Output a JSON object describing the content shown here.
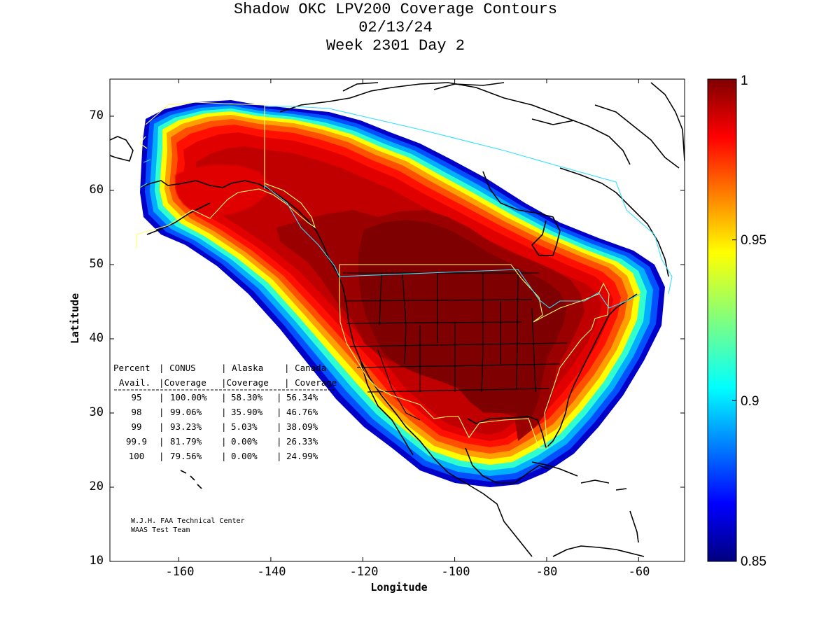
{
  "title": {
    "line1": "Shadow OKC LPV200 Coverage Contours",
    "line2": "02/13/24",
    "line3": "Week 2301 Day 2"
  },
  "axes": {
    "xlabel": "Longitude",
    "ylabel": "Latitude",
    "xticks": [
      "-160",
      "-140",
      "-120",
      "-100",
      "-80",
      "-60"
    ],
    "yticks": [
      "10",
      "20",
      "30",
      "40",
      "50",
      "60",
      "70"
    ],
    "xlim": [
      -175,
      -50
    ],
    "ylim": [
      10,
      75
    ]
  },
  "colorbar": {
    "colormap": "jet",
    "min": 0.85,
    "max": 1,
    "labels": [
      "1",
      "0.95",
      "0.9",
      "0.85"
    ]
  },
  "coverage_table": {
    "header1": [
      "Percent",
      "CONUS",
      "Alaska",
      "Canada"
    ],
    "header2": [
      "Avail.",
      "Coverage",
      "Coverage",
      "Coverage"
    ],
    "rows": [
      {
        "percent": "95",
        "conus": "100.00%",
        "alaska": "58.30%",
        "canada": "56.34%"
      },
      {
        "percent": "98",
        "conus": "99.06%",
        "alaska": "35.90%",
        "canada": "46.76%"
      },
      {
        "percent": "99",
        "conus": "93.23%",
        "alaska": "5.03%",
        "canada": "38.09%"
      },
      {
        "percent": "99.9",
        "conus": "81.79%",
        "alaska": "0.00%",
        "canada": "26.33%"
      },
      {
        "percent": "100",
        "conus": "79.56%",
        "alaska": "0.00%",
        "canada": "24.99%"
      }
    ]
  },
  "credits": {
    "line1": "W.J.H. FAA Technical Center",
    "line2": "WAAS Test Team"
  }
}
